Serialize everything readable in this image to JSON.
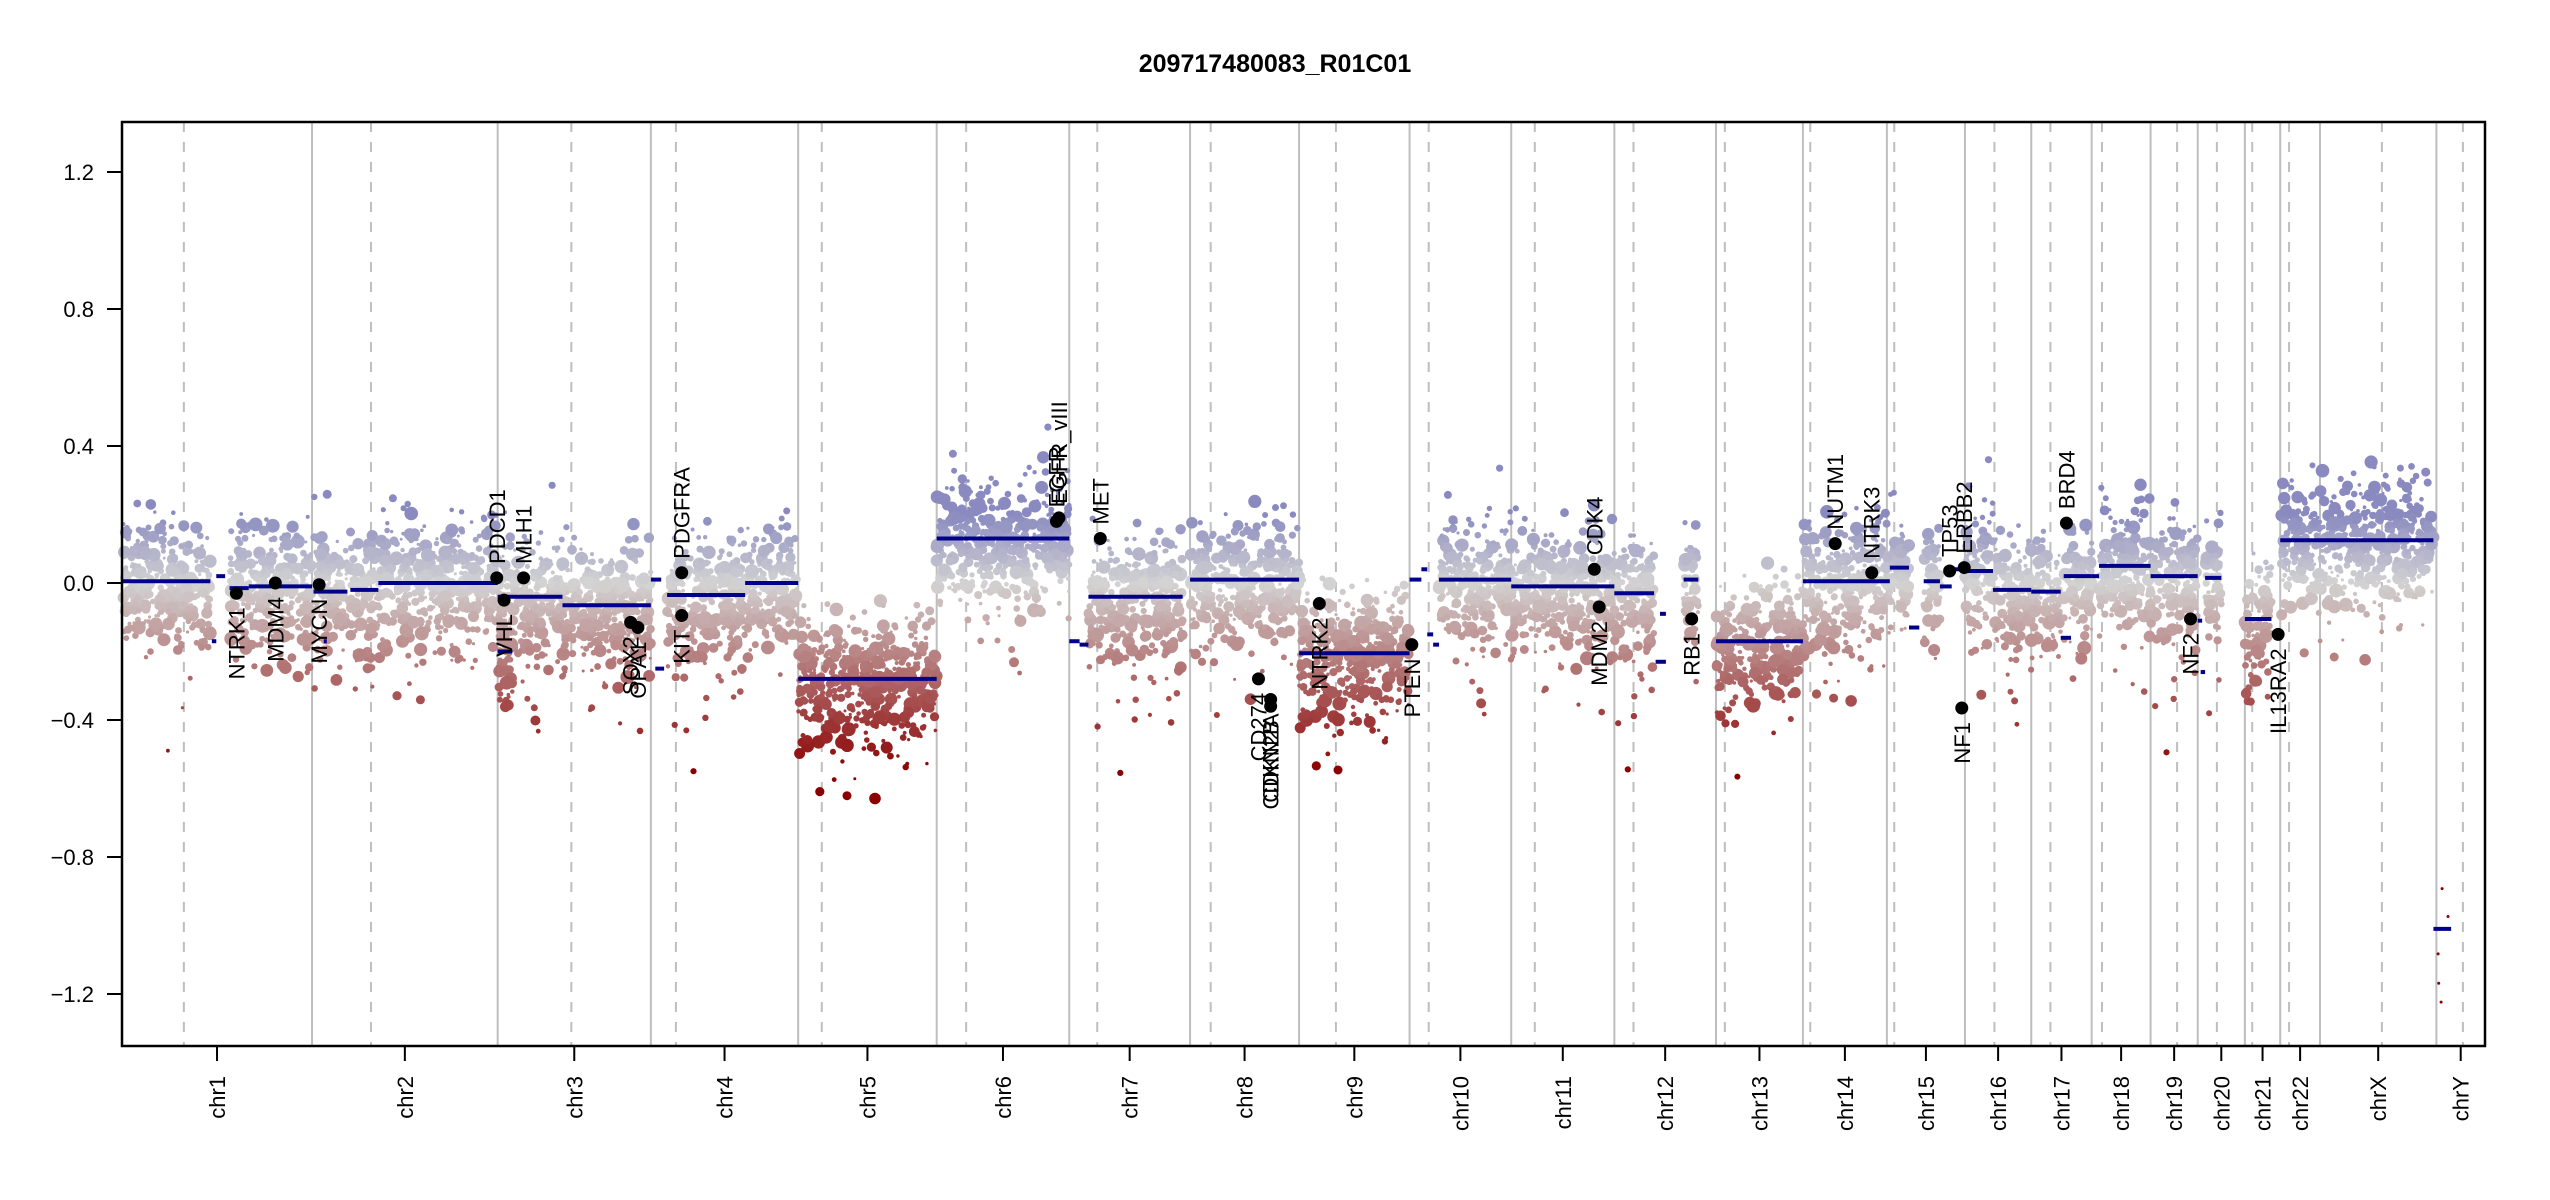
{
  "chart_data": {
    "type": "scatter",
    "title": "209717480083_R01C01",
    "xlabel": "",
    "ylabel": "",
    "ylim": [
      -1.35,
      1.35
    ],
    "yticks": [
      1.2,
      0.8,
      0.4,
      0.0,
      -0.4,
      -0.8,
      -1.2
    ],
    "ytick_labels": [
      "1.2",
      "0.8",
      "0.4",
      "0.0",
      "−0.4",
      "−0.8",
      "−1.2"
    ],
    "grid": false,
    "legend": "none",
    "colors": {
      "segment": "#00008B",
      "gain": "#8A8AC0",
      "neutral": "#D3D3D3",
      "loss": "#8B0000",
      "gene_point": "#000000",
      "chr_boundary": "#BEBEBE",
      "arm_boundary": "#BEBEBE",
      "frame": "#000000"
    },
    "chromosomes": [
      {
        "name": "chr1",
        "start": 0.0,
        "end": 12.9,
        "centromere": 4.2
      },
      {
        "name": "chr2",
        "start": 12.9,
        "end": 25.5,
        "centromere": 16.9
      },
      {
        "name": "chr3",
        "start": 25.5,
        "end": 35.9,
        "centromere": 30.5
      },
      {
        "name": "chr4",
        "start": 35.9,
        "end": 45.9,
        "centromere": 37.6
      },
      {
        "name": "chr5",
        "start": 45.9,
        "end": 55.3,
        "centromere": 47.5
      },
      {
        "name": "chr6",
        "start": 55.3,
        "end": 64.3,
        "centromere": 57.3
      },
      {
        "name": "chr7",
        "start": 64.3,
        "end": 72.5,
        "centromere": 66.2
      },
      {
        "name": "chr8",
        "start": 72.5,
        "end": 79.9,
        "centromere": 73.9
      },
      {
        "name": "chr9",
        "start": 79.9,
        "end": 87.4,
        "centromere": 82.4
      },
      {
        "name": "chr10",
        "start": 87.4,
        "end": 94.3,
        "centromere": 88.7
      },
      {
        "name": "chr11",
        "start": 94.3,
        "end": 101.3,
        "centromere": 95.9
      },
      {
        "name": "chr12",
        "start": 101.3,
        "end": 108.2,
        "centromere": 102.6
      },
      {
        "name": "chr13",
        "start": 108.2,
        "end": 114.1,
        "centromere": 108.8
      },
      {
        "name": "chr14",
        "start": 114.1,
        "end": 119.8,
        "centromere": 114.6
      },
      {
        "name": "chr15",
        "start": 119.8,
        "end": 125.1,
        "centromere": 120.3
      },
      {
        "name": "chr16",
        "start": 125.1,
        "end": 129.6,
        "centromere": 127.1
      },
      {
        "name": "chr17",
        "start": 129.6,
        "end": 133.7,
        "centromere": 130.9
      },
      {
        "name": "chr18",
        "start": 133.7,
        "end": 137.7,
        "centromere": 134.4
      },
      {
        "name": "chr19",
        "start": 137.7,
        "end": 140.9,
        "centromere": 139.5
      },
      {
        "name": "chr20",
        "start": 140.9,
        "end": 144.1,
        "centromere": 142.2
      },
      {
        "name": "chr21",
        "start": 144.1,
        "end": 146.5,
        "centromere": 144.6
      },
      {
        "name": "chr22",
        "start": 146.5,
        "end": 149.2,
        "centromere": 147.1
      },
      {
        "name": "chrX",
        "start": 149.2,
        "end": 157.1,
        "centromere": 153.4
      },
      {
        "name": "chrY",
        "start": 157.1,
        "end": 160.4,
        "centromere": 158.9
      }
    ],
    "segments": [
      {
        "x0": 0.0,
        "x1": 6.0,
        "y": 0.005
      },
      {
        "x0": 6.1,
        "x1": 6.4,
        "y": -0.17
      },
      {
        "x0": 6.4,
        "x1": 7.0,
        "y": 0.02
      },
      {
        "x0": 7.3,
        "x1": 8.6,
        "y": -0.015
      },
      {
        "x0": 8.6,
        "x1": 12.9,
        "y": -0.01
      },
      {
        "x0": 13.0,
        "x1": 15.3,
        "y": -0.025
      },
      {
        "x0": 13.7,
        "x1": 13.9,
        "y": -0.17
      },
      {
        "x0": 15.5,
        "x1": 17.4,
        "y": -0.02
      },
      {
        "x0": 17.4,
        "x1": 25.5,
        "y": 0.0
      },
      {
        "x0": 25.5,
        "x1": 29.9,
        "y": -0.04
      },
      {
        "x0": 25.5,
        "x1": 26.5,
        "y": -0.2
      },
      {
        "x0": 29.9,
        "x1": 35.9,
        "y": -0.065
      },
      {
        "x0": 35.9,
        "x1": 36.6,
        "y": 0.01
      },
      {
        "x0": 36.2,
        "x1": 36.8,
        "y": -0.25
      },
      {
        "x0": 37.0,
        "x1": 42.3,
        "y": -0.035
      },
      {
        "x0": 42.3,
        "x1": 45.9,
        "y": 0.0
      },
      {
        "x0": 45.9,
        "x1": 55.3,
        "y": -0.28
      },
      {
        "x0": 55.3,
        "x1": 64.3,
        "y": 0.13
      },
      {
        "x0": 64.3,
        "x1": 65.0,
        "y": -0.17
      },
      {
        "x0": 65.0,
        "x1": 65.6,
        "y": -0.18
      },
      {
        "x0": 65.6,
        "x1": 72.0,
        "y": -0.04
      },
      {
        "x0": 72.5,
        "x1": 79.9,
        "y": 0.01
      },
      {
        "x0": 79.9,
        "x1": 87.4,
        "y": -0.205
      },
      {
        "x0": 87.4,
        "x1": 88.2,
        "y": 0.01
      },
      {
        "x0": 88.2,
        "x1": 88.6,
        "y": 0.04
      },
      {
        "x0": 88.6,
        "x1": 89.0,
        "y": -0.15
      },
      {
        "x0": 89.0,
        "x1": 89.4,
        "y": -0.18
      },
      {
        "x0": 89.4,
        "x1": 94.3,
        "y": 0.01
      },
      {
        "x0": 94.3,
        "x1": 101.3,
        "y": -0.01
      },
      {
        "x0": 101.3,
        "x1": 104.0,
        "y": -0.03
      },
      {
        "x0": 104.1,
        "x1": 104.8,
        "y": -0.23
      },
      {
        "x0": 104.4,
        "x1": 104.8,
        "y": -0.09
      },
      {
        "x0": 106.0,
        "x1": 107.0,
        "y": 0.01
      },
      {
        "x0": 108.2,
        "x1": 114.1,
        "y": -0.17
      },
      {
        "x0": 114.1,
        "x1": 120.0,
        "y": 0.005
      },
      {
        "x0": 120.0,
        "x1": 121.3,
        "y": 0.045
      },
      {
        "x0": 121.3,
        "x1": 122.0,
        "y": -0.13
      },
      {
        "x0": 122.3,
        "x1": 123.4,
        "y": 0.005
      },
      {
        "x0": 123.4,
        "x1": 124.2,
        "y": -0.01
      },
      {
        "x0": 124.4,
        "x1": 125.1,
        "y": 0.04
      },
      {
        "x0": 125.1,
        "x1": 127.0,
        "y": 0.035
      },
      {
        "x0": 127.0,
        "x1": 129.6,
        "y": -0.02
      },
      {
        "x0": 129.6,
        "x1": 131.6,
        "y": -0.025
      },
      {
        "x0": 131.6,
        "x1": 132.3,
        "y": -0.16
      },
      {
        "x0": 131.8,
        "x1": 133.7,
        "y": 0.02
      },
      {
        "x0": 133.7,
        "x1": 134.2,
        "y": 0.02
      },
      {
        "x0": 134.2,
        "x1": 137.7,
        "y": 0.05
      },
      {
        "x0": 137.7,
        "x1": 140.9,
        "y": 0.02
      },
      {
        "x0": 140.9,
        "x1": 141.2,
        "y": -0.11
      },
      {
        "x0": 141.1,
        "x1": 141.4,
        "y": -0.26
      },
      {
        "x0": 141.4,
        "x1": 142.5,
        "y": 0.015
      },
      {
        "x0": 144.1,
        "x1": 145.9,
        "y": -0.105
      },
      {
        "x0": 146.5,
        "x1": 156.9,
        "y": 0.125
      },
      {
        "x0": 156.9,
        "x1": 158.1,
        "y": -1.01
      }
    ],
    "genes": [
      {
        "name": "NTRK1",
        "x": 4.7,
        "y": -0.03,
        "label_side": "below"
      },
      {
        "name": "MDM4",
        "x": 6.3,
        "y": 0.0,
        "label_side": "below"
      },
      {
        "name": "MYCN",
        "x": 8.1,
        "y": -0.005,
        "label_side": "below"
      },
      {
        "name": "PDCD1",
        "x": 15.4,
        "y": 0.015,
        "label_side": "above"
      },
      {
        "name": "VHL",
        "x": 15.7,
        "y": -0.05,
        "label_side": "below"
      },
      {
        "name": "MLH1",
        "x": 16.5,
        "y": 0.015,
        "label_side": "above"
      },
      {
        "name": "SOX2",
        "x": 20.9,
        "y": -0.115,
        "label_side": "below"
      },
      {
        "name": "OPA1",
        "x": 21.2,
        "y": -0.13,
        "label_side": "below"
      },
      {
        "name": "PDGFRA",
        "x": 23.0,
        "y": 0.03,
        "label_side": "above"
      },
      {
        "name": "KIT",
        "x": 23.0,
        "y": -0.095,
        "label_side": "below"
      },
      {
        "name": "EGFR",
        "x": 38.4,
        "y": 0.18,
        "label_side": "above"
      },
      {
        "name": "EGFR_vIII",
        "x": 38.5,
        "y": 0.19,
        "label_side": "above"
      },
      {
        "name": "MET",
        "x": 40.2,
        "y": 0.13,
        "label_side": "above"
      },
      {
        "name": "CD274",
        "x": 46.7,
        "y": -0.28,
        "label_side": "below"
      },
      {
        "name": "CDKN2A",
        "x": 47.2,
        "y": -0.34,
        "label_side": "below"
      },
      {
        "name": "CDKN2B",
        "x": 47.2,
        "y": -0.36,
        "label_side": "below"
      },
      {
        "name": "NTRK2",
        "x": 49.2,
        "y": -0.06,
        "label_side": "below"
      },
      {
        "name": "PTEN",
        "x": 53.0,
        "y": -0.18,
        "label_side": "below"
      },
      {
        "name": "CDK4",
        "x": 60.5,
        "y": 0.04,
        "label_side": "above"
      },
      {
        "name": "MDM2",
        "x": 60.7,
        "y": -0.07,
        "label_side": "below"
      },
      {
        "name": "RB1",
        "x": 64.5,
        "y": -0.105,
        "label_side": "below"
      },
      {
        "name": "NUTM1",
        "x": 70.4,
        "y": 0.115,
        "label_side": "above"
      },
      {
        "name": "NTRK3",
        "x": 71.9,
        "y": 0.03,
        "label_side": "above"
      },
      {
        "name": "TP53",
        "x": 75.1,
        "y": 0.035,
        "label_side": "above"
      },
      {
        "name": "ERBB2",
        "x": 75.7,
        "y": 0.045,
        "label_side": "above"
      },
      {
        "name": "NF1",
        "x": 75.6,
        "y": -0.365,
        "label_side": "below"
      },
      {
        "name": "BRD4",
        "x": 79.9,
        "y": 0.175,
        "label_side": "above"
      },
      {
        "name": "NF2",
        "x": 85.0,
        "y": -0.105,
        "label_side": "below"
      },
      {
        "name": "IL13RA2",
        "x": 88.6,
        "y": -0.15,
        "label_side": "below"
      }
    ],
    "gene_x_units": "chromosome-relative percent is not shown; gene x is given in the same genome axis units as segments after rescaling by the script",
    "xlim": [
      0,
      160.4
    ]
  }
}
